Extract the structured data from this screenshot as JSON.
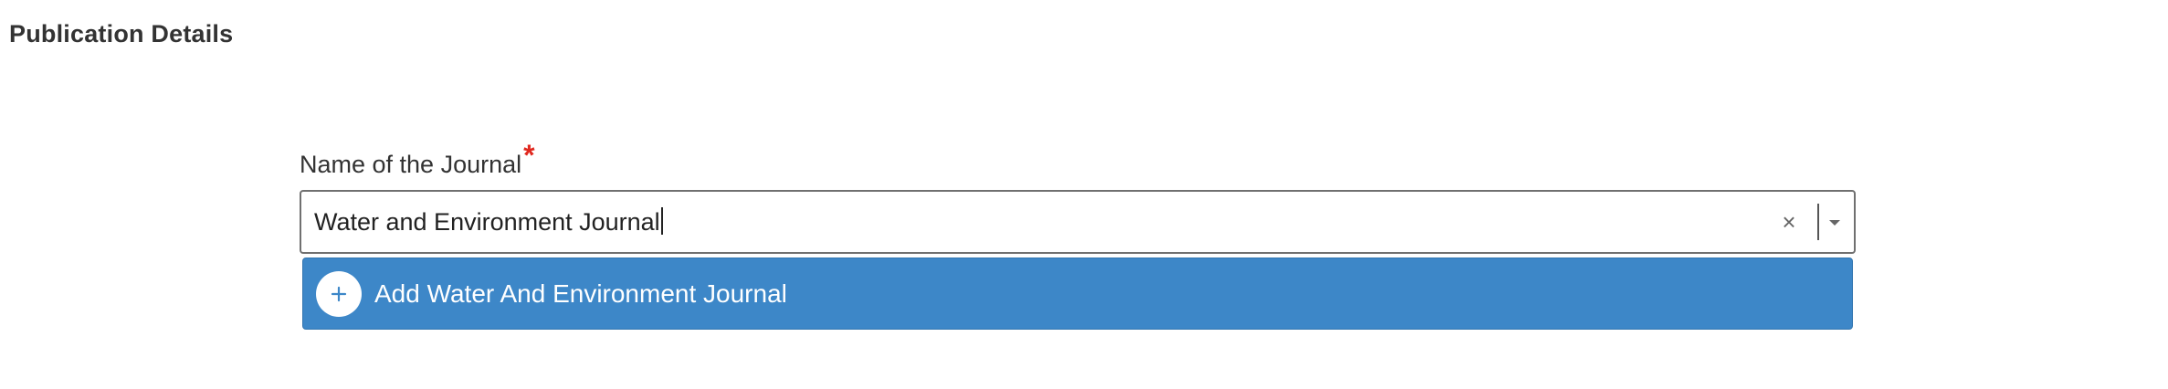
{
  "section": {
    "title": "Publication Details"
  },
  "journal_field": {
    "label": "Name of the Journal",
    "required_marker": "*",
    "value": "Water and Environment Journal",
    "clear_symbol": "×"
  },
  "dropdown": {
    "options": [
      {
        "label": "Add Water And Environment Journal",
        "icon": "plus-circle-icon",
        "highlighted": true
      }
    ]
  },
  "colors": {
    "accent": "#3d87c8",
    "required": "#e0281f",
    "text": "#333333",
    "border": "#707070"
  }
}
